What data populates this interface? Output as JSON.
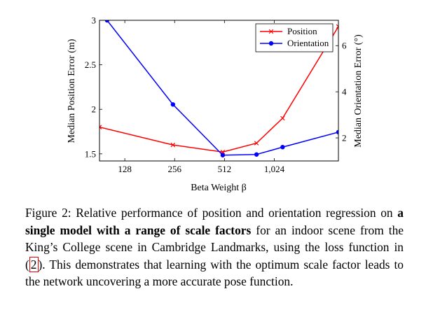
{
  "chart_data": {
    "type": "line",
    "title": "",
    "xlabel": "Beta Weight β",
    "ylabel_left": "Median Position Error (m)",
    "ylabel_right": "Median Orientation Error (°)",
    "x_scale": "log2",
    "xlim": [
      90,
      2500
    ],
    "x_ticks": [
      128,
      256,
      512,
      1024
    ],
    "x_tick_labels": [
      "128",
      "256",
      "512",
      "1,024"
    ],
    "ylim_left": [
      1.42,
      3.0
    ],
    "y_ticks_left": [
      1.5,
      2,
      2.5,
      3
    ],
    "y_tick_labels_left": [
      "1.5",
      "2",
      "2.5",
      "3"
    ],
    "ylim_right": [
      1.0,
      7.1
    ],
    "y_ticks_right": [
      2,
      4,
      6
    ],
    "y_tick_labels_right": [
      "2",
      "4",
      "6"
    ],
    "grid": false,
    "legend_position": "top-right",
    "series": [
      {
        "name": "Position",
        "axis": "left",
        "color": "#ff0000",
        "marker": "x",
        "x": [
          90,
          250,
          500,
          800,
          1150,
          2500
        ],
        "y": [
          1.8,
          1.6,
          1.52,
          1.62,
          1.9,
          2.93
        ]
      },
      {
        "name": "Orientation",
        "axis": "right",
        "color": "#0000ff",
        "marker": "circle",
        "x": [
          100,
          250,
          500,
          800,
          1150,
          2500
        ],
        "y": [
          7.1,
          3.45,
          1.25,
          1.28,
          1.6,
          2.25
        ]
      }
    ]
  },
  "caption": {
    "prefix": "Figure 2: Relative performance of position and orientation regression on ",
    "bold": "a single model with a range of scale factors",
    "mid": " for an indoor scene from the King’s College scene in Cambridge Landmarks, using the loss function in (",
    "ref": "2",
    "suffix": "). This demonstrates that learning with the optimum scale factor leads to the network uncovering a more accurate pose function."
  }
}
